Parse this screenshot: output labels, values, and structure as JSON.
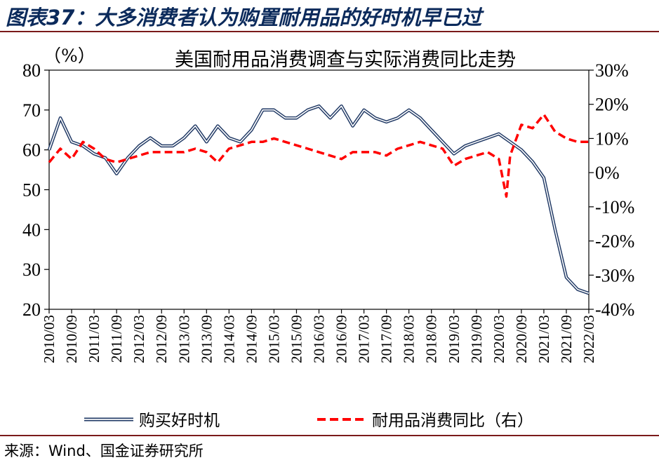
{
  "figure_title": "图表37：大多消费者认为购置耐用品的好时机早已过",
  "source": "来源：Wind、国金证券研究所",
  "colors": {
    "series_left": "#1f3864",
    "series_right": "#ff0000",
    "rule": "#7a1a1a"
  },
  "chart_data": {
    "type": "line",
    "title": "美国耐用品消费调查与实际消费同比走势",
    "ylabel_left": "（%）",
    "ylim_left": [
      20,
      80
    ],
    "ylim_right": [
      -40,
      30
    ],
    "yticks_left": [
      "80",
      "70",
      "60",
      "50",
      "40",
      "30",
      "20"
    ],
    "yticks_right": [
      "30%",
      "20%",
      "10%",
      "0%",
      "-10%",
      "-20%",
      "-30%",
      "-40%"
    ],
    "xticks": [
      "2010/03",
      "2010/09",
      "2011/03",
      "2011/09",
      "2012/03",
      "2012/09",
      "2013/03",
      "2013/09",
      "2014/03",
      "2014/09",
      "2015/03",
      "2015/09",
      "2016/03",
      "2016/09",
      "2017/03",
      "2017/09",
      "2018/03",
      "2018/09",
      "2019/03",
      "2019/09",
      "2020/03",
      "2020/09",
      "2021/03",
      "2021/09",
      "2022/03"
    ],
    "legend": [
      "购买好时机",
      "耐用品消费同比（右）"
    ],
    "series": [
      {
        "name": "购买好时机",
        "axis": "left",
        "style": "double-line",
        "x": [
          "2010/03",
          "2010/06",
          "2010/09",
          "2010/12",
          "2011/03",
          "2011/06",
          "2011/09",
          "2011/12",
          "2012/03",
          "2012/06",
          "2012/09",
          "2012/12",
          "2013/03",
          "2013/06",
          "2013/09",
          "2013/12",
          "2014/03",
          "2014/06",
          "2014/09",
          "2014/12",
          "2015/03",
          "2015/06",
          "2015/09",
          "2015/12",
          "2016/03",
          "2016/06",
          "2016/09",
          "2016/12",
          "2017/03",
          "2017/06",
          "2017/09",
          "2017/12",
          "2018/03",
          "2018/06",
          "2018/09",
          "2018/12",
          "2019/03",
          "2019/06",
          "2019/09",
          "2019/12",
          "2020/03",
          "2020/06",
          "2020/09",
          "2020/12",
          "2021/03",
          "2021/06",
          "2021/09",
          "2021/12",
          "2022/03"
        ],
        "values": [
          60,
          68,
          62,
          61,
          59,
          58,
          54,
          58,
          61,
          63,
          61,
          61,
          63,
          66,
          62,
          66,
          63,
          62,
          65,
          70,
          70,
          68,
          68,
          70,
          71,
          68,
          71,
          66,
          70,
          68,
          67,
          68,
          70,
          68,
          65,
          62,
          59,
          61,
          62,
          63,
          64,
          62,
          60,
          57,
          53,
          40,
          28,
          25,
          24
        ]
      },
      {
        "name": "耐用品消费同比（右）",
        "axis": "right",
        "style": "dashed",
        "x": [
          "2010/03",
          "2010/06",
          "2010/09",
          "2010/12",
          "2011/03",
          "2011/06",
          "2011/09",
          "2011/12",
          "2012/03",
          "2012/06",
          "2012/09",
          "2012/12",
          "2013/03",
          "2013/06",
          "2013/09",
          "2013/12",
          "2014/03",
          "2014/06",
          "2014/09",
          "2014/12",
          "2015/03",
          "2015/06",
          "2015/09",
          "2015/12",
          "2016/03",
          "2016/06",
          "2016/09",
          "2016/12",
          "2017/03",
          "2017/06",
          "2017/09",
          "2017/12",
          "2018/03",
          "2018/06",
          "2018/09",
          "2018/12",
          "2019/03",
          "2019/06",
          "2019/09",
          "2019/12",
          "2020/03",
          "2020/05",
          "2020/06",
          "2020/09",
          "2020/12",
          "2021/03",
          "2021/06",
          "2021/09",
          "2021/12",
          "2022/03"
        ],
        "values": [
          3,
          7,
          4,
          9,
          7,
          4,
          3,
          4,
          5,
          6,
          6,
          6,
          6,
          7,
          6,
          3,
          7,
          8,
          9,
          9,
          10,
          9,
          8,
          7,
          6,
          5,
          4,
          6,
          6,
          6,
          5,
          7,
          8,
          9,
          8,
          7,
          2,
          4,
          5,
          6,
          4,
          -7,
          5,
          14,
          13,
          17,
          12,
          10,
          9,
          9
        ]
      }
    ]
  }
}
